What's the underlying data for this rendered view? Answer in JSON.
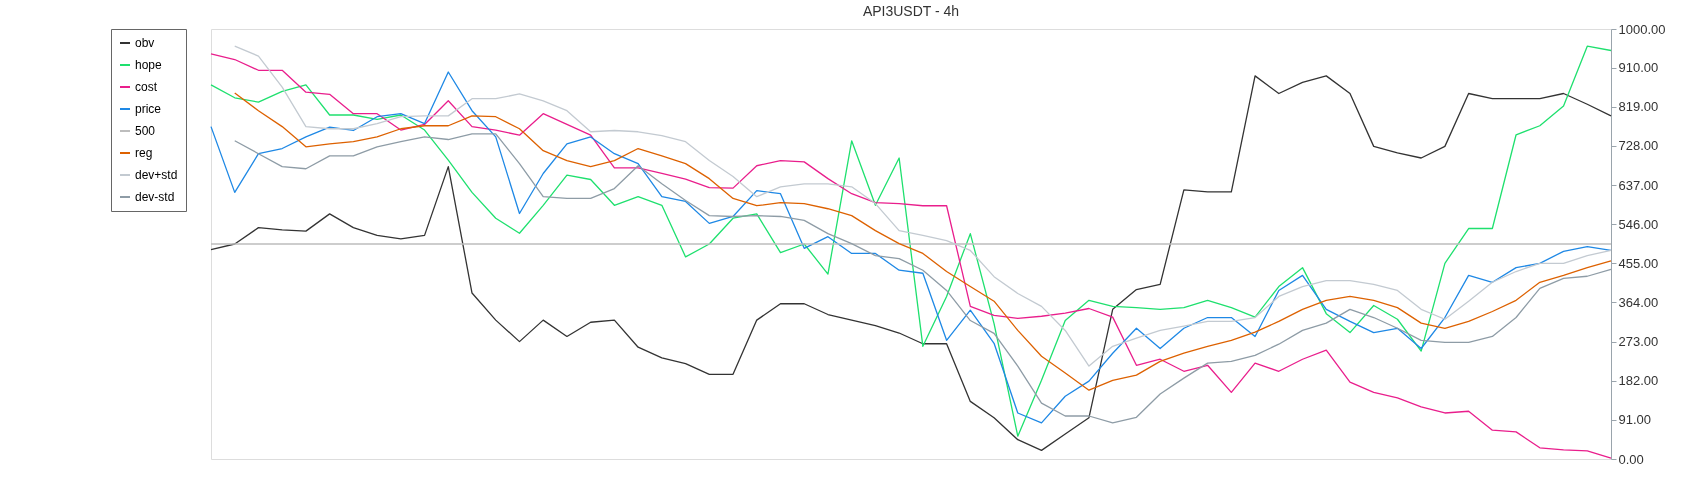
{
  "chart_data": {
    "type": "line",
    "title": "API3USDT - 4h",
    "categories": [
      null,
      null,
      null,
      null,
      null,
      null,
      null,
      null,
      null,
      null,
      null,
      null,
      null,
      null,
      null,
      null,
      null,
      null,
      null,
      null,
      null,
      null,
      null,
      null,
      null,
      null,
      null,
      null,
      null,
      null,
      null,
      null,
      null,
      null,
      null,
      null,
      null,
      null,
      null,
      null,
      null,
      null,
      null,
      null,
      null,
      null,
      null,
      null,
      null,
      null,
      null,
      null,
      null,
      null,
      null,
      null,
      null,
      null,
      null,
      null
    ],
    "ylim": [
      0,
      1000
    ],
    "yticks": [
      {
        "value": 0,
        "label": "0.00"
      },
      {
        "value": 91,
        "label": "91.00"
      },
      {
        "value": 182,
        "label": "182.00"
      },
      {
        "value": 273,
        "label": "273.00"
      },
      {
        "value": 364,
        "label": "364.00"
      },
      {
        "value": 455,
        "label": "455.00"
      },
      {
        "value": 546,
        "label": "546.00"
      },
      {
        "value": 637,
        "label": "637.00"
      },
      {
        "value": 728,
        "label": "728.00"
      },
      {
        "value": 819,
        "label": "819.00"
      },
      {
        "value": 910,
        "label": "910.00"
      },
      {
        "value": 1000,
        "label": "1000.00"
      }
    ],
    "tick_labels": "y",
    "grid": false,
    "legend": "top left",
    "marker": "none",
    "line_style": "solid",
    "series": [
      {
        "name": "obv",
        "color": "#333333",
        "values": [
          487,
          500,
          538,
          533,
          530,
          570,
          538,
          520,
          512,
          520,
          680,
          386,
          323,
          273,
          323,
          285,
          318,
          323,
          260,
          235,
          222,
          197,
          197,
          323,
          361,
          361,
          336,
          323,
          310,
          293,
          268,
          268,
          134,
          96,
          45,
          20,
          58,
          96,
          348,
          394,
          406,
          626,
          621,
          621,
          891,
          850,
          876,
          891,
          850,
          727,
          712,
          700,
          727,
          850,
          838,
          838,
          838,
          850,
          825,
          798
        ]
      },
      {
        "name": "hope",
        "color": "#1ee06e",
        "values": [
          870,
          840,
          830,
          855,
          870,
          800,
          800,
          790,
          800,
          765,
          695,
          620,
          560,
          525,
          590,
          660,
          650,
          590,
          610,
          590,
          470,
          500,
          560,
          570,
          480,
          500,
          430,
          740,
          590,
          700,
          262,
          378,
          524,
          315,
          53,
          183,
          322,
          369,
          355,
          352,
          348,
          352,
          369,
          352,
          330,
          401,
          445,
          338,
          294,
          357,
          325,
          251,
          455,
          536,
          536,
          754,
          775,
          821,
          960,
          950
        ]
      },
      {
        "name": "cost",
        "color": "#e91e8c",
        "values": [
          942,
          929,
          904,
          904,
          853,
          848,
          803,
          803,
          765,
          778,
          833,
          773,
          765,
          753,
          803,
          778,
          753,
          677,
          677,
          664,
          651,
          631,
          630,
          682,
          694,
          691,
          652,
          617,
          596,
          594,
          589,
          589,
          355,
          334,
          327,
          332,
          339,
          350,
          330,
          218,
          232,
          204,
          218,
          155,
          223,
          204,
          232,
          253,
          179,
          155,
          142,
          121,
          107,
          111,
          67,
          63,
          26,
          21,
          19,
          2
        ]
      },
      {
        "name": "price",
        "color": "#1e88e5",
        "values": [
          773,
          620,
          710,
          722,
          749,
          772,
          764,
          796,
          803,
          780,
          900,
          810,
          749,
          571,
          664,
          733,
          749,
          710,
          687,
          610,
          599,
          548,
          564,
          624,
          617,
          490,
          517,
          478,
          478,
          439,
          432,
          276,
          346,
          269,
          107,
          84,
          146,
          181,
          246,
          304,
          257,
          304,
          329,
          329,
          285,
          392,
          427,
          348,
          320,
          294,
          304,
          257,
          329,
          427,
          411,
          445,
          455,
          483,
          494,
          485
        ]
      },
      {
        "name": "500",
        "color": "#bdbdbd",
        "values": [
          500,
          500,
          500,
          500,
          500,
          500,
          500,
          500,
          500,
          500,
          500,
          500,
          500,
          500,
          500,
          500,
          500,
          500,
          500,
          500,
          500,
          500,
          500,
          500,
          500,
          500,
          500,
          500,
          500,
          500,
          500,
          500,
          500,
          500,
          500,
          500,
          500,
          500,
          500,
          500,
          500,
          500,
          500,
          500,
          500,
          500,
          500,
          500,
          500,
          500,
          500,
          500,
          500,
          500,
          500,
          500,
          500,
          500,
          500,
          500
        ]
      },
      {
        "name": "reg",
        "color": "#dd6100",
        "values": [
          null,
          851,
          810,
          773,
          726,
          733,
          738,
          749,
          768,
          775,
          775,
          798,
          796,
          768,
          717,
          694,
          680,
          694,
          722,
          705,
          687,
          652,
          606,
          589,
          596,
          594,
          582,
          566,
          531,
          501,
          478,
          436,
          401,
          367,
          299,
          239,
          200,
          160,
          183,
          195,
          227,
          246,
          262,
          276,
          295,
          320,
          348,
          369,
          378,
          369,
          352,
          316,
          304,
          320,
          343,
          369,
          411,
          427,
          445,
          461
        ]
      },
      {
        "name": "dev+std",
        "color": "#c3cad1",
        "values": [
          null,
          960,
          937,
          865,
          773,
          768,
          768,
          780,
          796,
          798,
          798,
          838,
          838,
          849,
          833,
          810,
          761,
          764,
          761,
          752,
          738,
          694,
          657,
          610,
          633,
          640,
          640,
          633,
          594,
          531,
          520,
          508,
          485,
          424,
          385,
          355,
          299,
          216,
          262,
          281,
          299,
          309,
          320,
          320,
          329,
          378,
          401,
          415,
          415,
          406,
          392,
          348,
          325,
          367,
          411,
          436,
          455,
          455,
          473,
          485
        ]
      },
      {
        "name": "dev-std",
        "color": "#8e9ca6",
        "values": [
          null,
          740,
          710,
          680,
          675,
          705,
          705,
          726,
          738,
          749,
          743,
          756,
          756,
          687,
          610,
          606,
          606,
          629,
          682,
          640,
          601,
          566,
          564,
          566,
          564,
          555,
          524,
          501,
          473,
          466,
          439,
          392,
          322,
          292,
          216,
          130,
          100,
          100,
          84,
          97,
          151,
          188,
          223,
          227,
          241,
          267,
          299,
          316,
          348,
          329,
          304,
          276,
          271,
          271,
          285,
          329,
          397,
          420,
          425,
          441
        ]
      }
    ]
  }
}
